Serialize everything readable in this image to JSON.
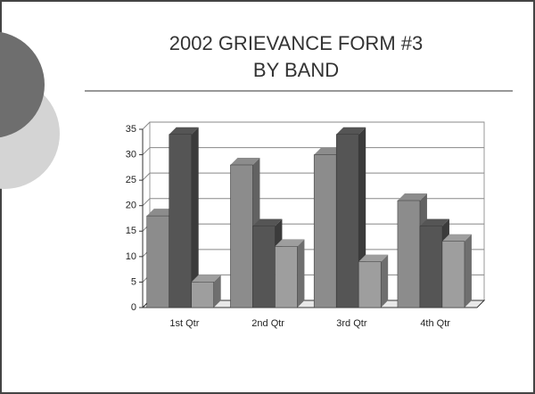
{
  "chart_data": {
    "type": "bar",
    "title": "2002 GRIEVANCE FORM #3",
    "subtitle": "BY BAND",
    "categories": [
      "1st Qtr",
      "2nd Qtr",
      "3rd Qtr",
      "4th Qtr"
    ],
    "series": [
      {
        "color": "#8c8c8c",
        "values": [
          18,
          28,
          30,
          21
        ]
      },
      {
        "color": "#555555",
        "values": [
          34,
          16,
          34,
          16
        ]
      },
      {
        "color": "#9e9e9e",
        "values": [
          5,
          12,
          9,
          13
        ]
      }
    ],
    "ylim": [
      0,
      35
    ],
    "yticks": [
      0,
      5,
      10,
      15,
      20,
      25,
      30,
      35
    ],
    "grid": true
  }
}
